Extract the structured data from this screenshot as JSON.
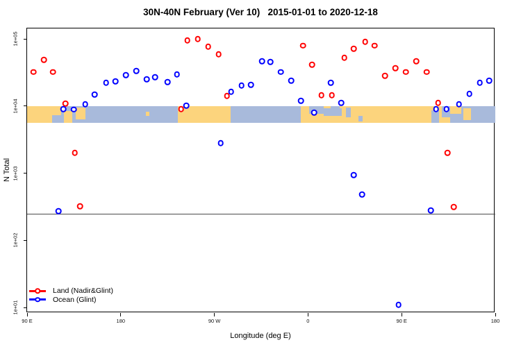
{
  "title": "30N-40N February (Ver 10)   2015-01-01 to 2020-12-18",
  "colors": {
    "land_series": "#ff0000",
    "ocean_series": "#0000ff",
    "map_land": "#FCD47D",
    "map_ocean": "#A8BADB",
    "cutoff_line": "#4a4a4a",
    "axis": "#000000"
  },
  "legend": {
    "entries": [
      {
        "label": "Land (Nadir&Glint)",
        "color": "#ff0000"
      },
      {
        "label": "Ocean (Glint)",
        "color": "#0000ff"
      }
    ]
  },
  "chart_data": {
    "type": "scatter",
    "title": "30N-40N February (Ver 10)   2015-01-01 to 2020-12-18",
    "xlabel": "Longitude (deg E)",
    "ylabel": "N Total",
    "x_axis": {
      "note": "longitude wraps eastward; axis spans 450 deg starting at 90E",
      "range": [
        90,
        540
      ],
      "ticks": [
        {
          "label": "90 E",
          "pos": 90
        },
        {
          "label": "180",
          "pos": 180
        },
        {
          "label": "90 W",
          "pos": 270
        },
        {
          "label": "0",
          "pos": 360
        },
        {
          "label": "90 E",
          "pos": 450
        },
        {
          "label": "180",
          "pos": 540
        }
      ]
    },
    "y_axis": {
      "scale": "log",
      "ticks": [
        {
          "label": "1e+01",
          "value": 10
        },
        {
          "label": "1e+02",
          "value": 100
        },
        {
          "label": "1e+03",
          "value": 1000
        },
        {
          "label": "1e+04",
          "value": 10000
        },
        {
          "label": "1e+05",
          "value": 100000
        }
      ],
      "range": [
        8,
        140000
      ],
      "grid": false
    },
    "cutoff_line_value": 250,
    "map_strip": {
      "value_top": 10000,
      "value_bottom": 5600,
      "land_rects": [
        [
          0.0,
          7.2,
          0,
          100
        ],
        [
          7.8,
          9.6,
          30,
          100
        ],
        [
          10.4,
          12.4,
          10,
          80
        ],
        [
          25.4,
          26.1,
          35,
          60
        ],
        [
          32.2,
          43.4,
          0,
          100
        ],
        [
          58.5,
          92.8,
          0,
          100
        ],
        [
          93.2,
          94.8,
          15,
          85
        ]
      ],
      "ocean_patches": [
        [
          5.3,
          7.2,
          55,
          100
        ],
        [
          60.3,
          63.4,
          0,
          48
        ],
        [
          63.4,
          67.2,
          12,
          58
        ],
        [
          64.8,
          66.8,
          0,
          22
        ],
        [
          68.1,
          69.1,
          8,
          68
        ],
        [
          70.8,
          71.6,
          60,
          90
        ],
        [
          86.3,
          88.0,
          25,
          100
        ],
        [
          88.6,
          90.3,
          0,
          65
        ],
        [
          90.3,
          92.8,
          45,
          100
        ]
      ]
    },
    "series": [
      {
        "name": "Land (Nadir&Glint)",
        "color": "#ff0000",
        "marker": "open-circle",
        "points": [
          [
            96,
            32000
          ],
          [
            106,
            49000
          ],
          [
            115,
            32000
          ],
          [
            127,
            10900
          ],
          [
            136,
            2020
          ],
          [
            141,
            320
          ],
          [
            238,
            9000
          ],
          [
            244,
            95000
          ],
          [
            254,
            100000
          ],
          [
            264,
            77000
          ],
          [
            274,
            59000
          ],
          [
            282,
            14200
          ],
          [
            355,
            79000
          ],
          [
            364,
            41500
          ],
          [
            373,
            14500
          ],
          [
            383,
            14500
          ],
          [
            395,
            52600
          ],
          [
            404,
            71600
          ],
          [
            415,
            91000
          ],
          [
            424,
            79000
          ],
          [
            434,
            28300
          ],
          [
            444,
            36800
          ],
          [
            454,
            32000
          ],
          [
            464,
            46600
          ],
          [
            474,
            32000
          ],
          [
            485,
            11200
          ],
          [
            494,
            2020
          ],
          [
            500,
            315
          ]
        ]
      },
      {
        "name": "Ocean (Glint)",
        "color": "#0000ff",
        "marker": "open-circle",
        "points": [
          [
            120,
            273
          ],
          [
            125,
            9000
          ],
          [
            135,
            8900
          ],
          [
            146,
            10700
          ],
          [
            155,
            14900
          ],
          [
            166,
            22300
          ],
          [
            175,
            23400
          ],
          [
            185,
            29000
          ],
          [
            195,
            33500
          ],
          [
            205,
            25100
          ],
          [
            213,
            27000
          ],
          [
            225,
            22900
          ],
          [
            234,
            29700
          ],
          [
            243,
            10200
          ],
          [
            276,
            2820
          ],
          [
            286,
            16400
          ],
          [
            296,
            20300
          ],
          [
            305,
            20800
          ],
          [
            316,
            46600
          ],
          [
            324,
            45600
          ],
          [
            334,
            32000
          ],
          [
            344,
            24000
          ],
          [
            353,
            12000
          ],
          [
            366,
            8000
          ],
          [
            382,
            22300
          ],
          [
            392,
            11200
          ],
          [
            404,
            940
          ],
          [
            412,
            484
          ],
          [
            447,
            11
          ],
          [
            478,
            280
          ],
          [
            483,
            9000
          ],
          [
            493,
            9000
          ],
          [
            505,
            10700
          ],
          [
            515,
            15200
          ],
          [
            525,
            22300
          ],
          [
            534,
            24000
          ]
        ]
      }
    ]
  }
}
